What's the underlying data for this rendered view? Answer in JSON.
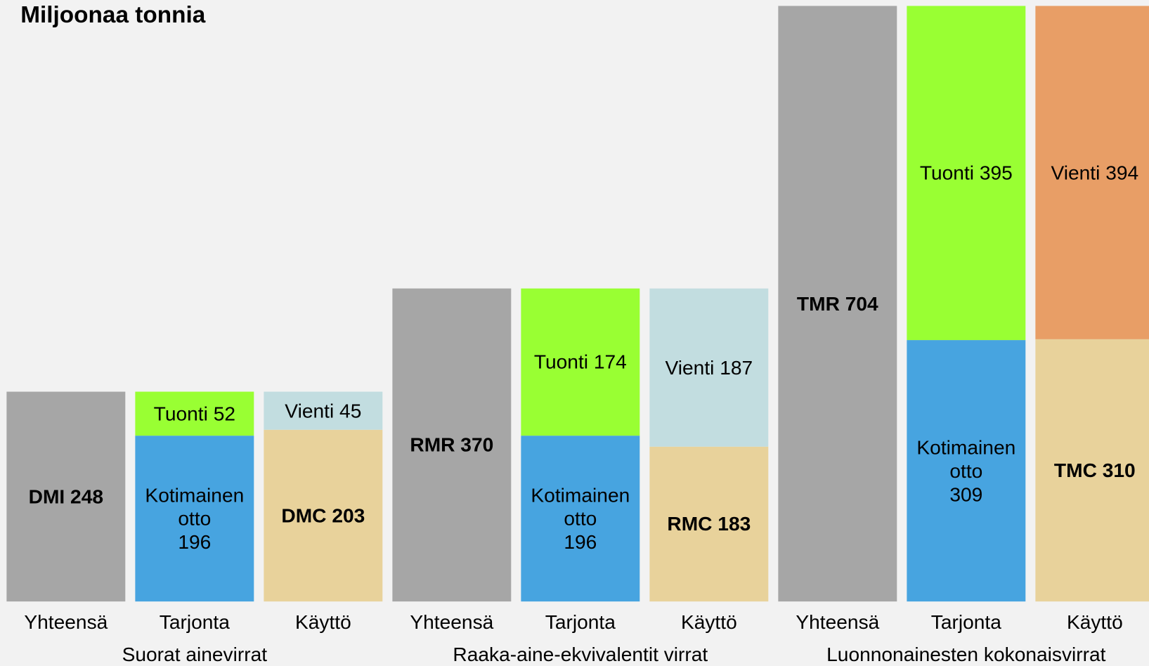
{
  "chart_data": {
    "type": "stacked-bar",
    "title": "Miljoonaa tonnia",
    "groups": [
      {
        "name": "Suorat ainevirrat",
        "bars": [
          {
            "category": "Yhteensä",
            "segments": [
              {
                "value": 248,
                "value_label": "DMI 248",
                "color": "#a6a6a6",
                "bold": true
              }
            ]
          },
          {
            "category": "Tarjonta",
            "segments": [
              {
                "value": 196,
                "value_label": "Kotimainen\notto\n196",
                "color": "#47a4e0",
                "bold": false
              },
              {
                "value": 52,
                "value_label": "Tuonti 52",
                "color": "#99ff33",
                "bold": false
              }
            ]
          },
          {
            "category": "Käyttö",
            "segments": [
              {
                "value": 203,
                "value_label": "DMC 203",
                "color": "#e8d29b",
                "bold": true
              },
              {
                "value": 45,
                "value_label": "Vienti 45",
                "color": "#c2dde0",
                "bold": false
              }
            ]
          }
        ]
      },
      {
        "name": "Raaka-aine-ekvivalentit virrat",
        "bars": [
          {
            "category": "Yhteensä",
            "segments": [
              {
                "value": 370,
                "value_label": "RMR 370",
                "color": "#a6a6a6",
                "bold": true
              }
            ]
          },
          {
            "category": "Tarjonta",
            "segments": [
              {
                "value": 196,
                "value_label": "Kotimainen\notto\n196",
                "color": "#47a4e0",
                "bold": false
              },
              {
                "value": 174,
                "value_label": "Tuonti 174",
                "color": "#99ff33",
                "bold": false
              }
            ]
          },
          {
            "category": "Käyttö",
            "segments": [
              {
                "value": 183,
                "value_label": "RMC 183",
                "color": "#e8d29b",
                "bold": true
              },
              {
                "value": 187,
                "value_label": "Vienti 187",
                "color": "#c2dde0",
                "bold": false
              }
            ]
          }
        ]
      },
      {
        "name": "Luonnonainesten kokonaisvirrat",
        "bars": [
          {
            "category": "Yhteensä",
            "segments": [
              {
                "value": 704,
                "value_label": "TMR 704",
                "color": "#a6a6a6",
                "bold": true
              }
            ]
          },
          {
            "category": "Tarjonta",
            "segments": [
              {
                "value": 309,
                "value_label": "Kotimainen\notto\n309",
                "color": "#47a4e0",
                "bold": false
              },
              {
                "value": 395,
                "value_label": "Tuonti 395",
                "color": "#99ff33",
                "bold": false
              }
            ]
          },
          {
            "category": "Käyttö",
            "segments": [
              {
                "value": 310,
                "value_label": "TMC 310",
                "color": "#e8d29b",
                "bold": true
              },
              {
                "value": 394,
                "value_label": "Vienti 394",
                "color": "#e89e66",
                "bold": false
              }
            ]
          }
        ]
      }
    ]
  }
}
